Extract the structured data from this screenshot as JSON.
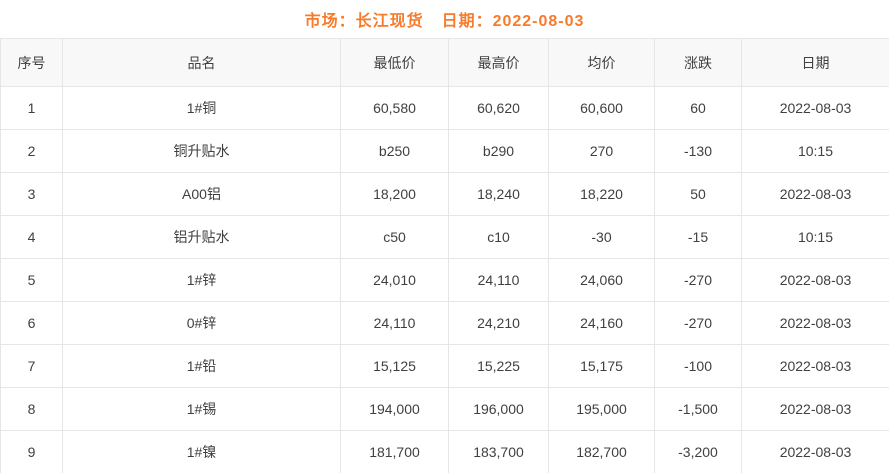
{
  "page_title": {
    "market": "市场：长江现货",
    "date": "日期：2022-08-03"
  },
  "colors": {
    "title_orange": "#f87b2b",
    "change_up_red": "#f31919",
    "change_down_green": "#008c00",
    "header_bg": "#f8f8f8",
    "border": "#e6e6e6",
    "cell_text": "#404040"
  },
  "table": {
    "columns": [
      {
        "key": "index",
        "label": "序号"
      },
      {
        "key": "name",
        "label": "品名"
      },
      {
        "key": "low",
        "label": "最低价"
      },
      {
        "key": "high",
        "label": "最高价"
      },
      {
        "key": "avg",
        "label": "均价"
      },
      {
        "key": "change",
        "label": "涨跌"
      },
      {
        "key": "date",
        "label": "日期"
      }
    ],
    "rows": [
      {
        "index": "1",
        "name": "1#铜",
        "low": "60,580",
        "high": "60,620",
        "avg": "60,600",
        "change": "60",
        "trend": "up",
        "date": "2022-08-03"
      },
      {
        "index": "2",
        "name": "铜升贴水",
        "low": "b250",
        "high": "b290",
        "avg": "270",
        "change": "-130",
        "trend": "down",
        "date": "10:15"
      },
      {
        "index": "3",
        "name": "A00铝",
        "low": "18,200",
        "high": "18,240",
        "avg": "18,220",
        "change": "50",
        "trend": "up",
        "date": "2022-08-03"
      },
      {
        "index": "4",
        "name": "铝升贴水",
        "low": "c50",
        "high": "c10",
        "avg": "-30",
        "change": "-15",
        "trend": "down",
        "date": "10:15"
      },
      {
        "index": "5",
        "name": "1#锌",
        "low": "24,010",
        "high": "24,110",
        "avg": "24,060",
        "change": "-270",
        "trend": "down",
        "date": "2022-08-03"
      },
      {
        "index": "6",
        "name": "0#锌",
        "low": "24,110",
        "high": "24,210",
        "avg": "24,160",
        "change": "-270",
        "trend": "down",
        "date": "2022-08-03"
      },
      {
        "index": "7",
        "name": "1#铅",
        "low": "15,125",
        "high": "15,225",
        "avg": "15,175",
        "change": "-100",
        "trend": "down",
        "date": "2022-08-03"
      },
      {
        "index": "8",
        "name": "1#锡",
        "low": "194,000",
        "high": "196,000",
        "avg": "195,000",
        "change": "-1,500",
        "trend": "down",
        "date": "2022-08-03"
      },
      {
        "index": "9",
        "name": "1#镍",
        "low": "181,700",
        "high": "183,700",
        "avg": "182,700",
        "change": "-3,200",
        "trend": "down",
        "date": "2022-08-03"
      }
    ]
  }
}
